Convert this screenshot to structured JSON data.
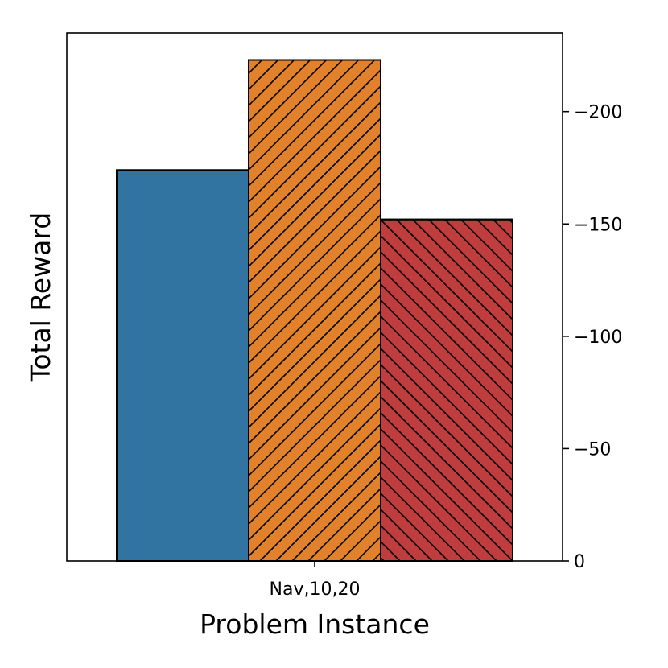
{
  "chart_data": {
    "type": "bar",
    "categories": [
      "Nav,10,20"
    ],
    "series": [
      {
        "values": [
          -174
        ],
        "color": "#3274a1",
        "hatch": "none"
      },
      {
        "values": [
          -223
        ],
        "color": "#e1812c",
        "hatch": "forward-diagonal"
      },
      {
        "values": [
          -152
        ],
        "color": "#c03d3e",
        "hatch": "back-diagonal"
      }
    ],
    "xlabel": "Problem Instance",
    "ylabel": "Total Reward",
    "ylim": [
      0,
      -235
    ],
    "inverted_y": true,
    "y_ticks": [
      0,
      -50,
      -100,
      -150,
      -200
    ],
    "y_tick_labels": [
      "0",
      "−50",
      "−100",
      "−150",
      "−200"
    ],
    "y_axis_side": "right",
    "grid": false,
    "legend": "none"
  }
}
